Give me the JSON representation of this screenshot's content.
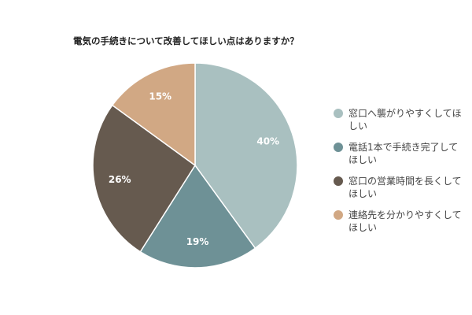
{
  "chart_data": {
    "type": "pie",
    "title": "電気の手続きについて改善してほしい点はありますか？",
    "slices": [
      {
        "name": [
          "窓口へ襲がりやすくしてほ",
          "しい"
        ],
        "value": 40,
        "label": "40%",
        "color": "#a9c0c0"
      },
      {
        "name": [
          "電話1本で手続き完了して",
          "ほしい"
        ],
        "value": 19,
        "label": "19%",
        "color": "#6e9196"
      },
      {
        "name": [
          "窓口の営業時間を長くして",
          "ほしい"
        ],
        "value": 26,
        "label": "26%",
        "color": "#665a4f"
      },
      {
        "name": [
          "連絡先を分かりやすくして",
          "ほしい"
        ],
        "value": 15,
        "label": "15%",
        "color": "#d1a884"
      }
    ],
    "legend_position": "right"
  }
}
